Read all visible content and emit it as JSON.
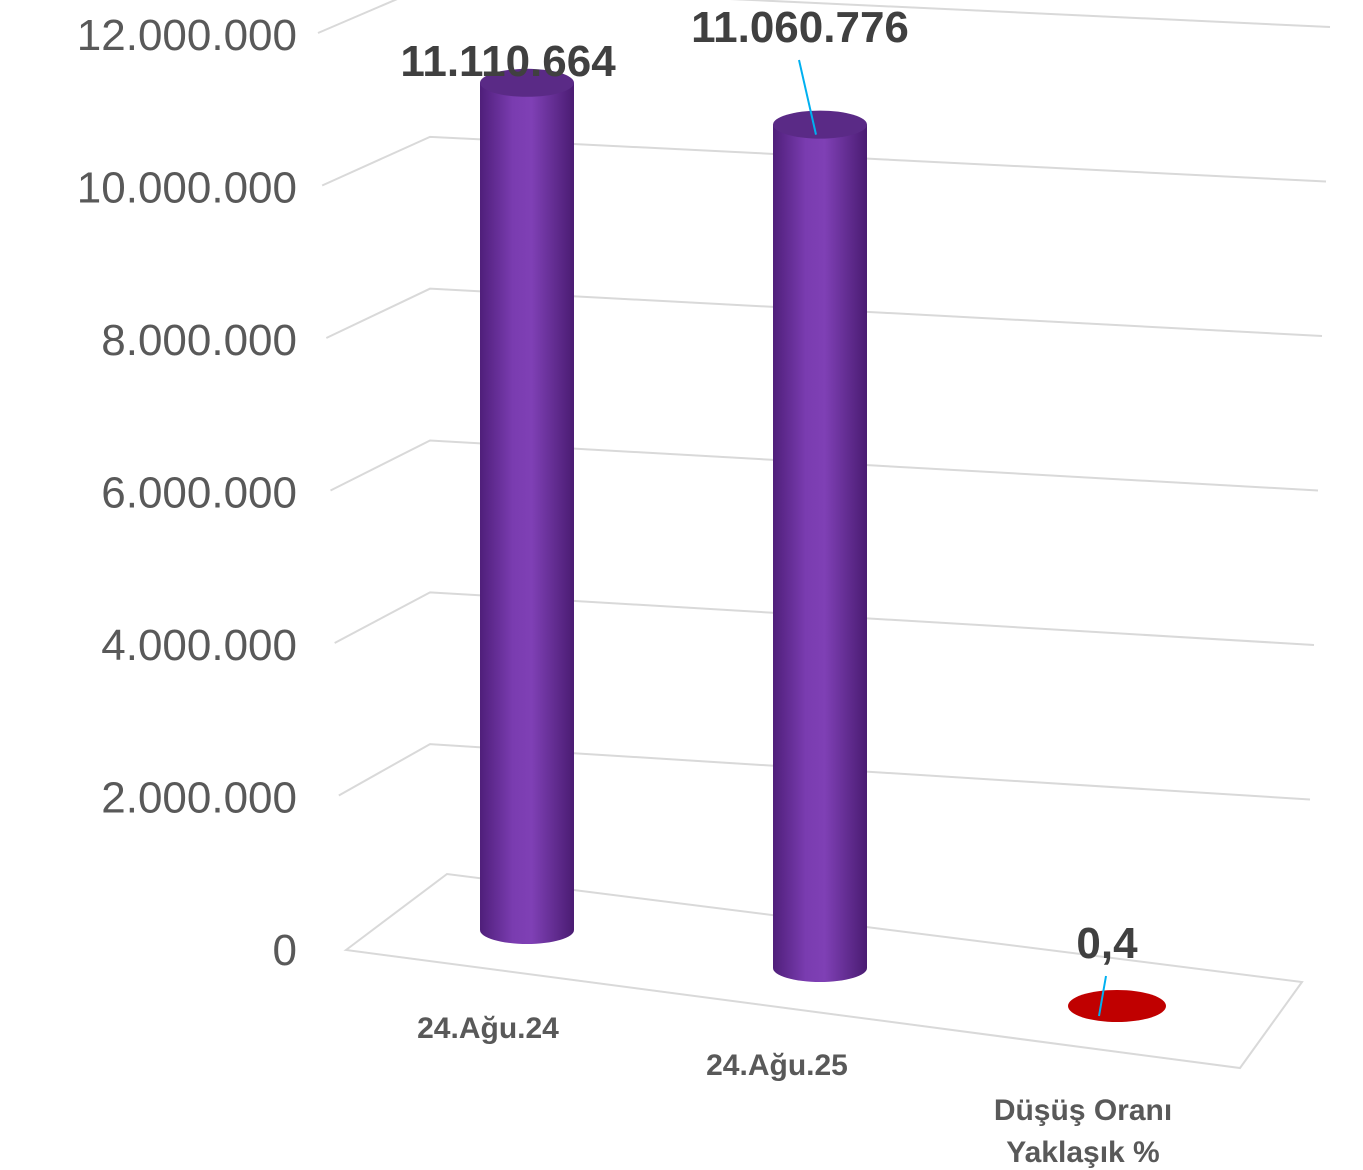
{
  "chart_data": {
    "type": "bar",
    "style": "3d-cylinder",
    "categories": [
      "24.Ağu.24",
      "24.Ağu.25",
      "Düşüş Oranı Yaklaşık %"
    ],
    "values": [
      11110664,
      11060776,
      0.4
    ],
    "data_labels": [
      "11.110.664",
      "11.060.776",
      "0,4"
    ],
    "ylim": [
      0,
      12000000
    ],
    "yticks": [
      "0",
      "2.000.000",
      "4.000.000",
      "6.000.000",
      "8.000.000",
      "10.000.000",
      "12.000.000"
    ],
    "grid": true,
    "legend": "none",
    "colors": [
      "#7030a0",
      "#7030a0",
      "#c00000"
    ],
    "label_leader_color": "#00b0f0"
  }
}
